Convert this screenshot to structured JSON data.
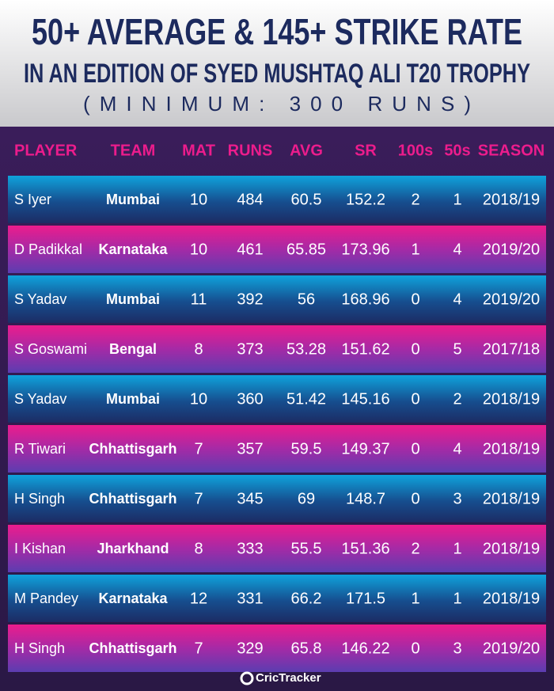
{
  "header": {
    "title": "50+ AVERAGE & 145+ STRIKE RATE",
    "subtitle": "IN AN EDITION OF SYED MUSHTAQ ALI T20 TROPHY",
    "note": "(MINIMUM: 300 RUNS)"
  },
  "table": {
    "columns": [
      "PLAYER",
      "TEAM",
      "MAT",
      "RUNS",
      "AVG",
      "SR",
      "100s",
      "50s",
      "SEASON"
    ],
    "rows": [
      [
        "S Iyer",
        "Mumbai",
        "10",
        "484",
        "60.5",
        "152.2",
        "2",
        "1",
        "2018/19"
      ],
      [
        "D Padikkal",
        "Karnataka",
        "10",
        "461",
        "65.85",
        "173.96",
        "1",
        "4",
        "2019/20"
      ],
      [
        "S Yadav",
        "Mumbai",
        "11",
        "392",
        "56",
        "168.96",
        "0",
        "4",
        "2019/20"
      ],
      [
        "S Goswami",
        "Bengal",
        "8",
        "373",
        "53.28",
        "151.62",
        "0",
        "5",
        "2017/18"
      ],
      [
        "S Yadav",
        "Mumbai",
        "10",
        "360",
        "51.42",
        "145.16",
        "0",
        "2",
        "2018/19"
      ],
      [
        "R Tiwari",
        "Chhattisgarh",
        "7",
        "357",
        "59.5",
        "149.37",
        "0",
        "4",
        "2018/19"
      ],
      [
        "H Singh",
        "Chhattisgarh",
        "7",
        "345",
        "69",
        "148.7",
        "0",
        "3",
        "2018/19"
      ],
      [
        "I Kishan",
        "Jharkhand",
        "8",
        "333",
        "55.5",
        "151.36",
        "2",
        "1",
        "2018/19"
      ],
      [
        "M Pandey",
        "Karnataka",
        "12",
        "331",
        "66.2",
        "171.5",
        "1",
        "1",
        "2018/19"
      ],
      [
        "H Singh",
        "Chhattisgarh",
        "7",
        "329",
        "65.8",
        "146.22",
        "0",
        "3",
        "2019/20"
      ]
    ]
  },
  "footer": {
    "brand": "CricTracker"
  }
}
